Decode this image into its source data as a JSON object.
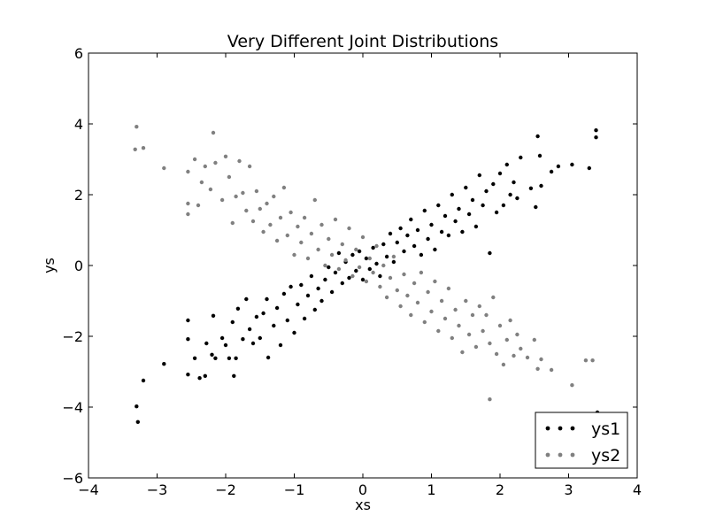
{
  "chart_data": {
    "type": "scatter",
    "title": "Very Different Joint Distributions",
    "xlabel": "xs",
    "ylabel": "ys",
    "xlim": [
      -4,
      4
    ],
    "ylim": [
      -6,
      6
    ],
    "x_ticks": [
      -4,
      -3,
      -2,
      -1,
      0,
      1,
      2,
      3,
      4
    ],
    "y_ticks": [
      -6,
      -4,
      -2,
      0,
      2,
      4,
      6
    ],
    "x_tick_labels": [
      "−4",
      "−3",
      "−2",
      "−1",
      "0",
      "1",
      "2",
      "3",
      "4"
    ],
    "y_tick_labels": [
      "−6",
      "−4",
      "−2",
      "0",
      "2",
      "4",
      "6"
    ],
    "grid": false,
    "legend": {
      "placement": "lower-right"
    },
    "series": [
      {
        "name": "ys1",
        "color": "#000000",
        "points": [
          [
            -3.3,
            -3.98
          ],
          [
            -3.28,
            -4.42
          ],
          [
            -3.2,
            -3.25
          ],
          [
            -2.9,
            -2.78
          ],
          [
            -2.55,
            -3.08
          ],
          [
            -2.55,
            -2.08
          ],
          [
            -2.55,
            -1.55
          ],
          [
            -2.45,
            -2.62
          ],
          [
            -2.38,
            -3.18
          ],
          [
            -2.3,
            -3.12
          ],
          [
            -2.28,
            -2.2
          ],
          [
            -2.2,
            -2.52
          ],
          [
            -2.18,
            -1.42
          ],
          [
            -2.15,
            -2.62
          ],
          [
            -2.05,
            -2.05
          ],
          [
            -2.0,
            -2.25
          ],
          [
            -1.95,
            -2.62
          ],
          [
            -1.9,
            -1.6
          ],
          [
            -1.88,
            -3.12
          ],
          [
            -1.85,
            -2.62
          ],
          [
            -1.82,
            -1.22
          ],
          [
            -1.75,
            -2.08
          ],
          [
            -1.7,
            -0.95
          ],
          [
            -1.65,
            -1.8
          ],
          [
            -1.6,
            -2.2
          ],
          [
            -1.55,
            -1.45
          ],
          [
            -1.5,
            -2.05
          ],
          [
            -1.45,
            -1.35
          ],
          [
            -1.4,
            -0.95
          ],
          [
            -1.38,
            -2.6
          ],
          [
            -1.3,
            -1.7
          ],
          [
            -1.25,
            -1.2
          ],
          [
            -1.2,
            -2.25
          ],
          [
            -1.15,
            -0.8
          ],
          [
            -1.1,
            -1.55
          ],
          [
            -1.05,
            -0.6
          ],
          [
            -1.0,
            -1.9
          ],
          [
            -0.95,
            -1.1
          ],
          [
            -0.9,
            -0.55
          ],
          [
            -0.85,
            -1.5
          ],
          [
            -0.8,
            -0.85
          ],
          [
            -0.75,
            -0.3
          ],
          [
            -0.7,
            -1.25
          ],
          [
            -0.65,
            -0.65
          ],
          [
            -0.6,
            -1.0
          ],
          [
            -0.55,
            -0.4
          ],
          [
            -0.5,
            -0.05
          ],
          [
            -0.45,
            -0.75
          ],
          [
            -0.4,
            -0.2
          ],
          [
            -0.35,
            0.35
          ],
          [
            -0.3,
            -0.5
          ],
          [
            -0.25,
            0.1
          ],
          [
            -0.2,
            -0.35
          ],
          [
            -0.15,
            0.3
          ],
          [
            -0.1,
            -0.15
          ],
          [
            -0.05,
            0.4
          ],
          [
            0.0,
            -0.4
          ],
          [
            0.05,
            0.2
          ],
          [
            0.1,
            -0.1
          ],
          [
            0.15,
            0.5
          ],
          [
            0.2,
            0.05
          ],
          [
            0.25,
            -0.3
          ],
          [
            0.3,
            0.6
          ],
          [
            0.35,
            0.25
          ],
          [
            0.4,
            0.9
          ],
          [
            0.45,
            0.1
          ],
          [
            0.5,
            0.65
          ],
          [
            0.55,
            1.05
          ],
          [
            0.6,
            0.4
          ],
          [
            0.65,
            0.85
          ],
          [
            0.7,
            1.3
          ],
          [
            0.75,
            0.55
          ],
          [
            0.8,
            1.0
          ],
          [
            0.85,
            0.3
          ],
          [
            0.9,
            1.55
          ],
          [
            0.95,
            0.75
          ],
          [
            1.0,
            1.15
          ],
          [
            1.05,
            0.45
          ],
          [
            1.1,
            1.7
          ],
          [
            1.15,
            0.95
          ],
          [
            1.2,
            1.4
          ],
          [
            1.25,
            0.85
          ],
          [
            1.3,
            2.0
          ],
          [
            1.35,
            1.25
          ],
          [
            1.4,
            1.6
          ],
          [
            1.45,
            0.95
          ],
          [
            1.5,
            2.2
          ],
          [
            1.55,
            1.45
          ],
          [
            1.6,
            1.85
          ],
          [
            1.65,
            1.1
          ],
          [
            1.7,
            2.55
          ],
          [
            1.75,
            1.7
          ],
          [
            1.8,
            2.1
          ],
          [
            1.85,
            0.35
          ],
          [
            1.9,
            2.3
          ],
          [
            1.95,
            1.5
          ],
          [
            2.0,
            2.6
          ],
          [
            2.05,
            1.7
          ],
          [
            2.1,
            2.85
          ],
          [
            2.15,
            2.0
          ],
          [
            2.2,
            2.35
          ],
          [
            2.25,
            1.9
          ],
          [
            2.3,
            3.05
          ],
          [
            2.45,
            2.18
          ],
          [
            2.52,
            1.65
          ],
          [
            2.55,
            3.65
          ],
          [
            2.58,
            3.1
          ],
          [
            2.6,
            2.25
          ],
          [
            2.75,
            2.65
          ],
          [
            2.85,
            2.8
          ],
          [
            3.05,
            2.85
          ],
          [
            3.3,
            2.75
          ],
          [
            3.4,
            3.62
          ],
          [
            3.4,
            3.82
          ],
          [
            3.42,
            -4.15
          ]
        ]
      },
      {
        "name": "ys2",
        "color": "#808080",
        "points": [
          [
            -3.32,
            3.28
          ],
          [
            -3.3,
            3.92
          ],
          [
            -3.2,
            3.32
          ],
          [
            -2.9,
            2.75
          ],
          [
            -2.55,
            2.65
          ],
          [
            -2.55,
            1.75
          ],
          [
            -2.55,
            1.45
          ],
          [
            -2.45,
            3.0
          ],
          [
            -2.4,
            1.7
          ],
          [
            -2.35,
            2.35
          ],
          [
            -2.3,
            2.8
          ],
          [
            -2.22,
            2.15
          ],
          [
            -2.18,
            3.75
          ],
          [
            -2.15,
            2.9
          ],
          [
            -2.05,
            1.85
          ],
          [
            -2.0,
            3.08
          ],
          [
            -1.95,
            2.5
          ],
          [
            -1.9,
            1.2
          ],
          [
            -1.85,
            1.95
          ],
          [
            -1.8,
            2.95
          ],
          [
            -1.75,
            2.05
          ],
          [
            -1.7,
            1.55
          ],
          [
            -1.65,
            2.8
          ],
          [
            -1.6,
            1.25
          ],
          [
            -1.55,
            2.1
          ],
          [
            -1.5,
            1.6
          ],
          [
            -1.45,
            0.95
          ],
          [
            -1.4,
            1.75
          ],
          [
            -1.35,
            1.15
          ],
          [
            -1.3,
            1.95
          ],
          [
            -1.25,
            0.7
          ],
          [
            -1.2,
            1.35
          ],
          [
            -1.15,
            2.2
          ],
          [
            -1.1,
            0.85
          ],
          [
            -1.05,
            1.5
          ],
          [
            -1.0,
            0.3
          ],
          [
            -0.95,
            1.1
          ],
          [
            -0.9,
            0.65
          ],
          [
            -0.85,
            1.35
          ],
          [
            -0.8,
            0.2
          ],
          [
            -0.75,
            0.9
          ],
          [
            -0.7,
            1.85
          ],
          [
            -0.65,
            0.45
          ],
          [
            -0.6,
            1.15
          ],
          [
            -0.55,
            0.0
          ],
          [
            -0.5,
            0.75
          ],
          [
            -0.45,
            0.3
          ],
          [
            -0.4,
            1.3
          ],
          [
            -0.35,
            -0.1
          ],
          [
            -0.3,
            0.6
          ],
          [
            -0.25,
            0.15
          ],
          [
            -0.2,
            1.05
          ],
          [
            -0.15,
            -0.3
          ],
          [
            -0.1,
            0.45
          ],
          [
            -0.05,
            -0.05
          ],
          [
            0.0,
            0.8
          ],
          [
            0.05,
            -0.45
          ],
          [
            0.1,
            0.2
          ],
          [
            0.15,
            -0.2
          ],
          [
            0.2,
            0.55
          ],
          [
            0.25,
            -0.6
          ],
          [
            0.3,
            0.0
          ],
          [
            0.35,
            -0.9
          ],
          [
            0.4,
            -0.35
          ],
          [
            0.45,
            0.25
          ],
          [
            0.5,
            -0.7
          ],
          [
            0.55,
            -1.15
          ],
          [
            0.6,
            -0.25
          ],
          [
            0.65,
            -0.85
          ],
          [
            0.7,
            -1.4
          ],
          [
            0.75,
            -0.5
          ],
          [
            0.8,
            -1.05
          ],
          [
            0.85,
            -0.2
          ],
          [
            0.9,
            -1.6
          ],
          [
            0.95,
            -0.75
          ],
          [
            1.0,
            -1.3
          ],
          [
            1.05,
            -0.45
          ],
          [
            1.1,
            -1.85
          ],
          [
            1.15,
            -1.0
          ],
          [
            1.2,
            -1.5
          ],
          [
            1.25,
            -0.65
          ],
          [
            1.3,
            -2.05
          ],
          [
            1.35,
            -1.25
          ],
          [
            1.4,
            -1.7
          ],
          [
            1.45,
            -2.45
          ],
          [
            1.5,
            -1.0
          ],
          [
            1.55,
            -1.95
          ],
          [
            1.6,
            -1.4
          ],
          [
            1.65,
            -2.3
          ],
          [
            1.7,
            -1.15
          ],
          [
            1.75,
            -1.85
          ],
          [
            1.8,
            -1.4
          ],
          [
            1.85,
            -2.2
          ],
          [
            1.9,
            -0.9
          ],
          [
            1.95,
            -2.5
          ],
          [
            2.0,
            -1.7
          ],
          [
            2.05,
            -2.8
          ],
          [
            2.1,
            -2.1
          ],
          [
            2.15,
            -1.55
          ],
          [
            2.2,
            -2.55
          ],
          [
            2.25,
            -1.95
          ],
          [
            2.3,
            -2.35
          ],
          [
            2.4,
            -2.6
          ],
          [
            2.5,
            -2.1
          ],
          [
            2.55,
            -2.92
          ],
          [
            2.6,
            -2.65
          ],
          [
            2.75,
            -2.95
          ],
          [
            3.05,
            -3.38
          ],
          [
            3.25,
            -2.68
          ],
          [
            3.35,
            -2.68
          ],
          [
            1.85,
            -3.78
          ]
        ]
      }
    ]
  }
}
